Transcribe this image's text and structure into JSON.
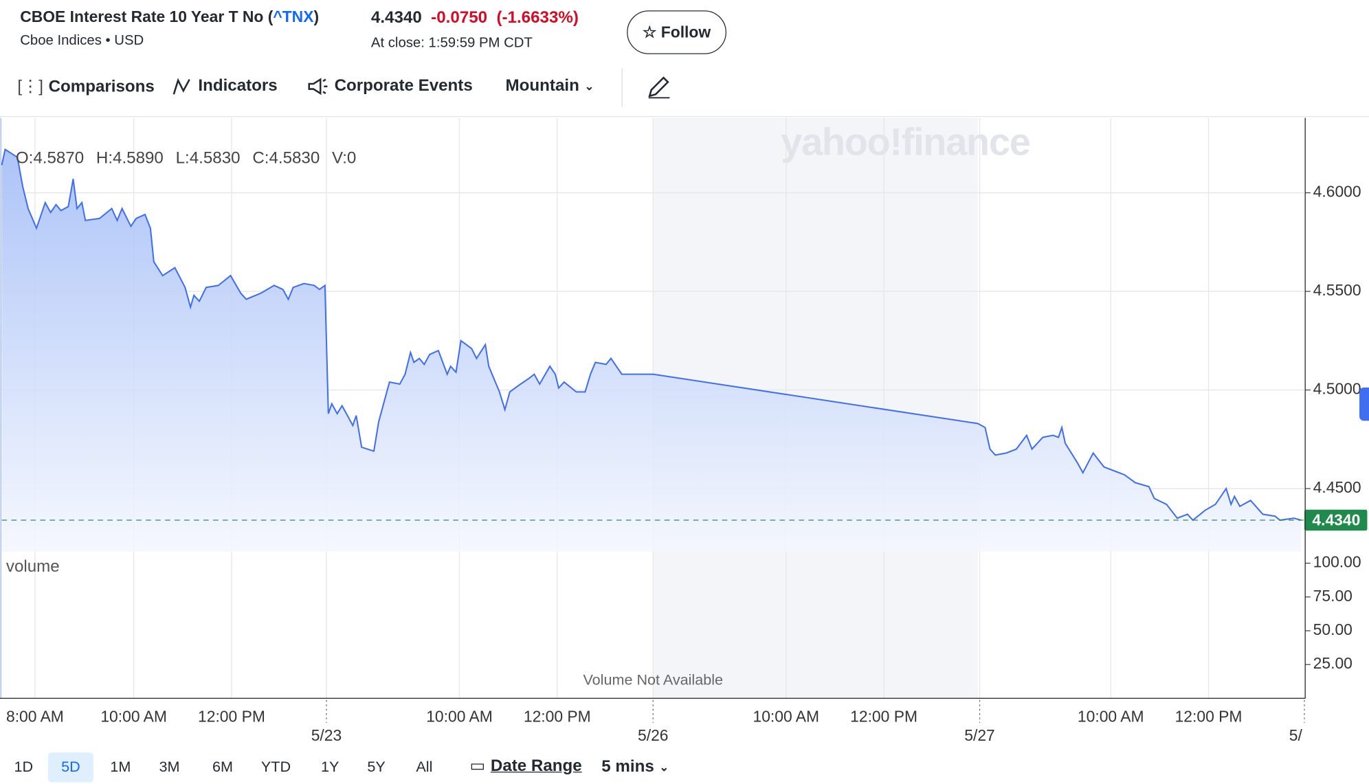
{
  "header": {
    "title_prefix": "CBOE Interest Rate 10 Year T No (",
    "symbol": "^TNX",
    "title_suffix": ")",
    "exchange": "Cboe Indices • USD",
    "price": "4.4340",
    "change": "-0.0750",
    "change_percent": "(-1.6633%)",
    "close_time": "At close: 1:59:59 PM CDT",
    "follow": "Follow"
  },
  "toolbar": {
    "comparisons": "Comparisons",
    "indicators": "Indicators",
    "events": "Corporate Events",
    "chart_style": "Mountain"
  },
  "ranges": [
    "1D",
    "5D",
    "1M",
    "3M",
    "6M",
    "YTD",
    "1Y",
    "5Y",
    "All"
  ],
  "selected_range": 1,
  "date_range": "Date Range",
  "interval": "5 mins",
  "chart_data": {
    "type": "line",
    "watermark": "yahoo!finance",
    "ohlc": [
      "O:4.5870",
      "H:4.5890",
      "L:4.5830",
      "C:4.5830",
      "V:0"
    ],
    "color": "#3f6ff0",
    "grid": true,
    "x": [
      0,
      0.07,
      0.32,
      0.43,
      0.54,
      0.71,
      0.89,
      1.0,
      1.11,
      1.21,
      1.36,
      1.46,
      1.54,
      1.64,
      1.71,
      2.0,
      2.25,
      2.36,
      2.46,
      2.64,
      2.75,
      2.93,
      3.04,
      3.11,
      3.29,
      3.54,
      3.75,
      3.86,
      3.93,
      4.04,
      4.18,
      4.43,
      4.68,
      4.89,
      5.0,
      5.29,
      5.57,
      5.75,
      5.86,
      5.96,
      6.18,
      6.39,
      6.5,
      6.61,
      6.68,
      6.75,
      6.86,
      6.96,
      7.18,
      7.25,
      7.36,
      7.61,
      7.71,
      7.93,
      8.14,
      8.25,
      8.36,
      8.43,
      8.54,
      8.64,
      8.75,
      8.93,
      9.11,
      9.18,
      9.29,
      9.39,
      9.61,
      9.71,
      9.89,
      9.96,
      10.18,
      10.29,
      10.39,
      10.61,
      10.79,
      10.89,
      11.0,
      11.21,
      11.32,
      11.39,
      11.5,
      11.75,
      11.93,
      12.04,
      12.14,
      12.36,
      12.46,
      12.68,
      13.32,
      19.96,
      20.11,
      20.21,
      20.32,
      20.54,
      20.75,
      20.96,
      21.07,
      21.29,
      21.5,
      21.61,
      21.68,
      21.75,
      22.0,
      22.11,
      22.32,
      22.54,
      22.75,
      22.96,
      23.18,
      23.46,
      23.57,
      23.82,
      24.04,
      24.25,
      24.36,
      24.61,
      24.82,
      25.04,
      25.14,
      25.21,
      25.32,
      25.54,
      25.79,
      26.04,
      26.14,
      26.43,
      26.57
    ],
    "values": [
      4.614,
      4.622,
      4.618,
      4.603,
      4.592,
      4.582,
      4.595,
      4.59,
      4.594,
      4.591,
      4.593,
      4.607,
      4.592,
      4.595,
      4.586,
      4.587,
      4.592,
      4.586,
      4.592,
      4.583,
      4.587,
      4.589,
      4.582,
      4.565,
      4.558,
      4.562,
      4.552,
      4.542,
      4.548,
      4.545,
      4.552,
      4.553,
      4.558,
      4.549,
      4.546,
      4.549,
      4.553,
      4.551,
      4.546,
      4.552,
      4.554,
      4.553,
      4.551,
      4.553,
      4.488,
      4.493,
      4.488,
      4.492,
      4.482,
      4.487,
      4.471,
      4.469,
      4.484,
      4.504,
      4.503,
      4.508,
      4.519,
      4.514,
      4.516,
      4.513,
      4.518,
      4.52,
      4.508,
      4.512,
      4.509,
      4.525,
      4.521,
      4.516,
      4.523,
      4.512,
      4.499,
      4.49,
      4.499,
      4.503,
      4.506,
      4.508,
      4.503,
      4.512,
      4.508,
      4.501,
      4.504,
      4.499,
      4.499,
      4.508,
      4.514,
      4.513,
      4.516,
      4.508,
      4.508,
      4.483,
      4.481,
      4.47,
      4.467,
      4.468,
      4.47,
      4.477,
      4.47,
      4.476,
      4.477,
      4.476,
      4.481,
      4.473,
      4.463,
      4.458,
      4.468,
      4.461,
      4.459,
      4.457,
      4.453,
      4.451,
      4.445,
      4.442,
      4.435,
      4.437,
      4.434,
      4.439,
      4.442,
      4.45,
      4.442,
      4.446,
      4.441,
      4.444,
      4.437,
      4.436,
      4.434,
      4.435,
      4.434
    ],
    "xlim": [
      0,
      26.64
    ],
    "ylim": [
      4.418,
      4.638
    ],
    "xticks": [
      {
        "value": 0.68,
        "label": "8:00 AM"
      },
      {
        "value": 2.7,
        "label": "10:00 AM"
      },
      {
        "value": 4.7,
        "label": "12:00 PM"
      },
      {
        "value": 9.36,
        "label": "10:00 AM"
      },
      {
        "value": 11.36,
        "label": "12:00 PM"
      },
      {
        "value": 16.04,
        "label": "10:00 AM"
      },
      {
        "value": 18.04,
        "label": "12:00 PM"
      },
      {
        "value": 22.68,
        "label": "10:00 AM"
      },
      {
        "value": 24.68,
        "label": "12:00 PM"
      }
    ],
    "date_ticks": [
      {
        "value": 6.64,
        "label": "5/23"
      },
      {
        "value": 13.32,
        "label": "5/26"
      },
      {
        "value": 20.0,
        "label": "5/27"
      },
      {
        "value": 26.64,
        "label": "5/"
      }
    ],
    "yticks": [
      {
        "value": 4.6,
        "label": "4.6000"
      },
      {
        "value": 4.55,
        "label": "4.5500"
      },
      {
        "value": 4.5,
        "label": "4.5000"
      },
      {
        "value": 4.45,
        "label": "4.4500"
      }
    ],
    "last_price": {
      "value": 4.434,
      "label": "4.4340"
    },
    "closed_range": [
      13.32,
      19.96
    ],
    "volume": {
      "label": "volume",
      "note": "Volume Not Available",
      "ylim": [
        0,
        108.5
      ],
      "yticks": [
        {
          "value": 100,
          "label": "100.00"
        },
        {
          "value": 75,
          "label": "75.00"
        },
        {
          "value": 50,
          "label": "50.00"
        },
        {
          "value": 25,
          "label": "25.00"
        }
      ]
    }
  }
}
